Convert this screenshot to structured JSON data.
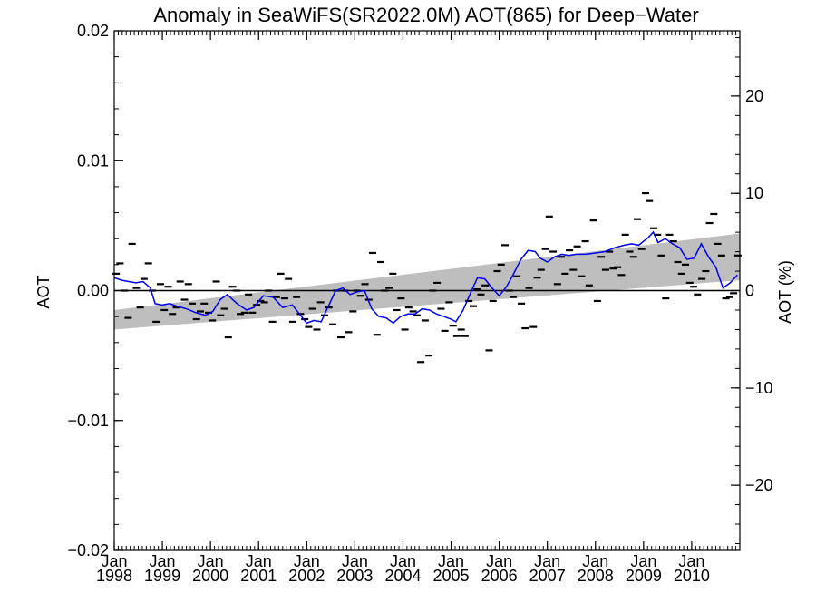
{
  "chart_data": {
    "type": "line",
    "title": "Anomaly in SeaWiFS(SR2022.0M) AOT(865) for Deep−Water",
    "ylabel": "AOT",
    "ylabel_right": "AOT (%)",
    "xlim": [
      1998.0,
      2011.0
    ],
    "ylim": [
      -0.02,
      0.02
    ],
    "ylim_right": [
      -26.7,
      26.7
    ],
    "grid": false,
    "legend": "none",
    "x_ticks": [
      {
        "year": 1998,
        "month": "Jan",
        "label": "1998"
      },
      {
        "year": 1999,
        "month": "Jan",
        "label": "1999"
      },
      {
        "year": 2000,
        "month": "Jan",
        "label": "2000"
      },
      {
        "year": 2001,
        "month": "Jan",
        "label": "2001"
      },
      {
        "year": 2002,
        "month": "Jan",
        "label": "2002"
      },
      {
        "year": 2003,
        "month": "Jan",
        "label": "2003"
      },
      {
        "year": 2004,
        "month": "Jan",
        "label": "2004"
      },
      {
        "year": 2005,
        "month": "Jan",
        "label": "2005"
      },
      {
        "year": 2006,
        "month": "Jan",
        "label": "2006"
      },
      {
        "year": 2007,
        "month": "Jan",
        "label": "2007"
      },
      {
        "year": 2008,
        "month": "Jan",
        "label": "2008"
      },
      {
        "year": 2009,
        "month": "Jan",
        "label": "2009"
      },
      {
        "year": 2010,
        "month": "Jan",
        "label": "2010"
      }
    ],
    "y_ticks_left": [
      {
        "value": 0.02,
        "label": "0.02"
      },
      {
        "value": 0.01,
        "label": "0.01"
      },
      {
        "value": 0.0,
        "label": "0.00"
      },
      {
        "value": -0.01,
        "label": "−0.01"
      },
      {
        "value": -0.02,
        "label": "−0.02"
      }
    ],
    "y_ticks_right": [
      {
        "value": 20,
        "label": "20"
      },
      {
        "value": 10,
        "label": "10"
      },
      {
        "value": 0,
        "label": "0"
      },
      {
        "value": -10,
        "label": "−10"
      },
      {
        "value": -20,
        "label": "−20"
      }
    ],
    "trend_band": {
      "x": [
        1998.0,
        2011.0
      ],
      "lower": [
        -0.003,
        0.0008
      ],
      "upper": [
        -0.0015,
        0.0044
      ]
    },
    "zero_line": 0.0,
    "colors": {
      "running_mean": "#0000ee",
      "band": "#bebebe",
      "monthly": "#000000",
      "axes": "#000000"
    },
    "series": [
      {
        "kind": "monthly",
        "x": [
          1998.04,
          1998.12,
          1998.21,
          1998.29,
          1998.37,
          1998.46,
          1998.54,
          1998.62,
          1998.71,
          1998.79,
          1998.87,
          1998.96,
          1999.04,
          1999.12,
          1999.21,
          1999.29,
          1999.37,
          1999.46,
          1999.54,
          1999.62,
          1999.71,
          1999.79,
          1999.87,
          1999.96,
          2000.04,
          2000.12,
          2000.21,
          2000.29,
          2000.37,
          2000.46,
          2000.54,
          2000.62,
          2000.71,
          2000.79,
          2000.87,
          2000.96,
          2001.04,
          2001.12,
          2001.21,
          2001.29,
          2001.37,
          2001.46,
          2001.54,
          2001.62,
          2001.71,
          2001.79,
          2001.87,
          2001.96,
          2002.04,
          2002.12,
          2002.21,
          2002.29,
          2002.37,
          2002.46,
          2002.54,
          2002.62,
          2002.71,
          2002.79,
          2002.87,
          2002.96,
          2003.04,
          2003.12,
          2003.21,
          2003.29,
          2003.37,
          2003.46,
          2003.54,
          2003.62,
          2003.71,
          2003.79,
          2003.87,
          2003.96,
          2004.04,
          2004.12,
          2004.21,
          2004.29,
          2004.37,
          2004.46,
          2004.54,
          2004.62,
          2004.71,
          2004.79,
          2004.87,
          2004.96,
          2005.04,
          2005.12,
          2005.21,
          2005.29,
          2005.37,
          2005.46,
          2005.54,
          2005.62,
          2005.71,
          2005.79,
          2005.87,
          2005.96,
          2006.04,
          2006.12,
          2006.21,
          2006.29,
          2006.37,
          2006.46,
          2006.54,
          2006.62,
          2006.71,
          2006.79,
          2006.87,
          2006.96,
          2007.04,
          2007.12,
          2007.21,
          2007.29,
          2007.37,
          2007.46,
          2007.54,
          2007.62,
          2007.71,
          2007.79,
          2007.87,
          2007.96,
          2008.04,
          2008.12,
          2008.21,
          2008.29,
          2008.37,
          2008.46,
          2008.54,
          2008.62,
          2008.71,
          2008.79,
          2008.87,
          2008.96,
          2009.04,
          2009.12,
          2009.21,
          2009.29,
          2009.37,
          2009.46,
          2009.54,
          2009.62,
          2009.71,
          2009.79,
          2009.87,
          2009.96,
          2010.04,
          2010.12,
          2010.21,
          2010.29,
          2010.37,
          2010.46,
          2010.54,
          2010.62,
          2010.71,
          2010.79,
          2010.87,
          2010.96
        ],
        "values": [
          0.0013,
          0.0021,
          0.0,
          -0.0021,
          0.0036,
          0.0002,
          -0.0013,
          0.0009,
          0.0021,
          0.0,
          -0.0024,
          0.0005,
          -0.0015,
          0.0003,
          -0.0018,
          -0.0013,
          0.0007,
          -0.0007,
          0.0005,
          -0.001,
          -0.0022,
          -0.0016,
          -0.001,
          -0.0017,
          -0.0023,
          0.0007,
          -0.0019,
          -0.0014,
          -0.0036,
          0.0003,
          0.0,
          -0.0018,
          -0.0017,
          -0.0003,
          -0.0017,
          -0.0011,
          -0.0008,
          -0.0009,
          0.0,
          -0.0024,
          -0.0005,
          0.0013,
          -0.0006,
          0.0009,
          -0.0024,
          -0.0005,
          -0.0018,
          -0.0022,
          -0.0028,
          -0.0014,
          -0.003,
          -0.0009,
          -0.0019,
          -0.0013,
          -0.0026,
          0.0,
          -0.0036,
          0.0,
          -0.0032,
          -0.0016,
          0.0,
          -0.0004,
          0.0005,
          -0.0007,
          0.0029,
          -0.0034,
          0.0022,
          0.0,
          0.0002,
          0.0013,
          -0.0015,
          -0.0006,
          -0.003,
          -0.0013,
          -0.0016,
          -0.0019,
          -0.0055,
          -0.0023,
          -0.005,
          0.0,
          0.0006,
          -0.0014,
          -0.0031,
          -0.0009,
          -0.0027,
          -0.0035,
          -0.003,
          -0.0035,
          -0.0008,
          -0.0012,
          0.0001,
          -0.0003,
          0.0004,
          -0.0046,
          -0.0008,
          0.0015,
          0.002,
          0.0035,
          0.0,
          -0.0005,
          0.0011,
          -0.001,
          -0.0029,
          0.0002,
          -0.0028,
          0.001,
          0.0016,
          0.0032,
          0.0057,
          0.003,
          0.0005,
          0.0026,
          0.0013,
          0.0031,
          0.0016,
          0.0034,
          0.0011,
          0.0038,
          0.0004,
          0.0054,
          -0.0008,
          0.0026,
          0.0016,
          0.003,
          0.0017,
          0.0018,
          0.0012,
          0.0043,
          0.003,
          0.0026,
          0.0055,
          0.0032,
          0.0075,
          0.0069,
          0.0048,
          0.0043,
          0.0027,
          -0.0006,
          0.0043,
          0.0038,
          0.0022,
          0.0013,
          0.002,
          0.0006,
          0.0003,
          -0.0003,
          0.0009,
          0.0015,
          0.0052,
          0.0059,
          0.0036,
          0.0027,
          -0.0006,
          -0.0005,
          -0.0002,
          0.0027
        ]
      },
      {
        "kind": "running_mean",
        "x": [
          1998.0,
          1998.15,
          1998.3,
          1998.45,
          1998.6,
          1998.75,
          1998.85,
          1999.0,
          1999.15,
          1999.3,
          1999.5,
          1999.7,
          1999.9,
          2000.05,
          2000.2,
          2000.35,
          2000.55,
          2000.75,
          2000.9,
          2001.1,
          2001.3,
          2001.5,
          2001.7,
          2001.85,
          2002.0,
          2002.15,
          2002.3,
          2002.45,
          2002.6,
          2002.75,
          2002.9,
          2003.05,
          2003.2,
          2003.35,
          2003.5,
          2003.65,
          2003.8,
          2003.95,
          2004.1,
          2004.25,
          2004.4,
          2004.55,
          2004.7,
          2004.85,
          2005.0,
          2005.1,
          2005.25,
          2005.4,
          2005.55,
          2005.7,
          2005.85,
          2006.0,
          2006.15,
          2006.3,
          2006.45,
          2006.6,
          2006.75,
          2006.85,
          2007.0,
          2007.15,
          2007.3,
          2007.45,
          2007.6,
          2007.8,
          2008.0,
          2008.2,
          2008.4,
          2008.6,
          2008.75,
          2008.9,
          2009.0,
          2009.1,
          2009.2,
          2009.3,
          2009.45,
          2009.6,
          2009.75,
          2009.9,
          2010.05,
          2010.2,
          2010.35,
          2010.5,
          2010.65,
          2010.8,
          2010.95
        ],
        "values": [
          0.001,
          0.0008,
          0.0007,
          0.0006,
          0.0007,
          0.0002,
          -0.001,
          -0.0011,
          -0.001,
          -0.0012,
          -0.0014,
          -0.0017,
          -0.0019,
          -0.0016,
          -0.0007,
          -0.0003,
          -0.001,
          -0.0015,
          -0.0013,
          -0.0004,
          -0.0005,
          -0.0013,
          -0.0011,
          -0.0018,
          -0.0025,
          -0.0023,
          -0.0024,
          -0.0012,
          0.0,
          0.0002,
          -0.0003,
          -0.0001,
          0.0,
          -0.0014,
          -0.002,
          -0.0021,
          -0.0025,
          -0.002,
          -0.0018,
          -0.0018,
          -0.0014,
          -0.0015,
          -0.0018,
          -0.002,
          -0.0022,
          -0.0024,
          -0.0015,
          -0.0002,
          0.001,
          0.0009,
          0.0002,
          -0.0004,
          0.0003,
          0.0013,
          0.0024,
          0.0031,
          0.003,
          0.0025,
          0.0022,
          0.0026,
          0.0028,
          0.0027,
          0.0028,
          0.0028,
          0.0029,
          0.003,
          0.0033,
          0.0035,
          0.0036,
          0.0035,
          0.0038,
          0.0041,
          0.0045,
          0.0037,
          0.004,
          0.0036,
          0.0033,
          0.0024,
          0.0025,
          0.0036,
          0.0026,
          0.0018,
          0.0002,
          0.0006,
          0.0012
        ]
      }
    ]
  }
}
